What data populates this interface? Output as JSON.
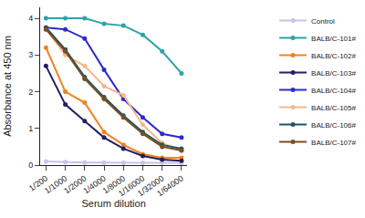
{
  "chart_data": {
    "type": "line",
    "x_label": "Serum dilution",
    "y_label": "Absorbance at 450 nm",
    "categories": [
      "1/200",
      "1/1000",
      "1/2000",
      "1/4000",
      "1/8000",
      "1/16000",
      "1/32000",
      "1/64000"
    ],
    "series": [
      {
        "name": "Control",
        "color": "#c4c4ee",
        "values": [
          0.1,
          0.08,
          0.07,
          0.07,
          0.06,
          0.06,
          0.06,
          0.06
        ]
      },
      {
        "name": "BALB/C-101#",
        "color": "#2fa3a6",
        "values": [
          4.0,
          4.0,
          4.0,
          3.85,
          3.8,
          3.55,
          3.1,
          2.5
        ]
      },
      {
        "name": "BALB/C-102#",
        "color": "#f0831f",
        "values": [
          3.2,
          2.0,
          1.7,
          0.9,
          0.55,
          0.3,
          0.2,
          0.2
        ]
      },
      {
        "name": "BALB/C-103#",
        "color": "#22205e",
        "values": [
          2.7,
          1.65,
          1.2,
          0.75,
          0.45,
          0.25,
          0.15,
          0.12
        ]
      },
      {
        "name": "BALB/C-104#",
        "color": "#2d2bd0",
        "values": [
          3.75,
          3.7,
          3.45,
          2.6,
          1.8,
          1.3,
          0.85,
          0.75
        ]
      },
      {
        "name": "BALB/C-105#",
        "color": "#f5b88a",
        "values": [
          3.7,
          3.0,
          2.7,
          2.15,
          1.9,
          1.1,
          0.6,
          0.4
        ]
      },
      {
        "name": "BALB/C-106#",
        "color": "#1d5660",
        "values": [
          3.75,
          3.15,
          2.4,
          1.85,
          1.35,
          0.9,
          0.55,
          0.45
        ]
      },
      {
        "name": "BALB/C-107#",
        "color": "#7a4e24",
        "values": [
          3.7,
          3.1,
          2.35,
          1.8,
          1.3,
          0.85,
          0.5,
          0.4
        ]
      }
    ],
    "ylim": [
      0,
      4.3
    ],
    "yticks": [
      0,
      1,
      2,
      3,
      4
    ],
    "grid": false,
    "legend": "right",
    "marker": "circle"
  }
}
